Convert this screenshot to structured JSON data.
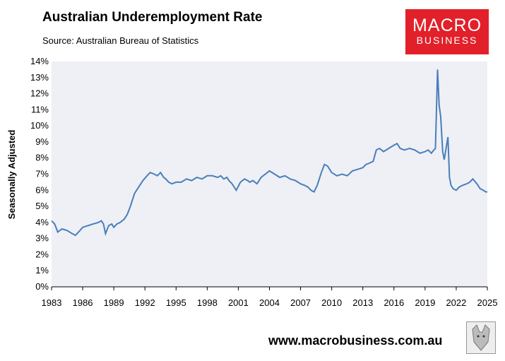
{
  "header": {
    "title": "Australian Underemployment Rate",
    "subtitle": "Source: Australian Bureau of Statistics"
  },
  "logo": {
    "line1": "MACRO",
    "line2": "BUSINESS"
  },
  "footer": {
    "website": "www.macrobusiness.com.au",
    "wolf_icon": "wolf-logo-icon"
  },
  "colors": {
    "line": "#4a7ebb",
    "plot_bg": "#eef0f5",
    "logo_bg": "#e2202a"
  },
  "chart_data": {
    "type": "line",
    "title": "Australian Underemployment Rate",
    "xlabel": "",
    "ylabel": "Seasonally Adjusted",
    "xlim": [
      1983,
      2025
    ],
    "ylim": [
      0,
      14
    ],
    "x_ticks": [
      "1983",
      "1986",
      "1989",
      "1992",
      "1995",
      "1998",
      "2001",
      "2004",
      "2007",
      "2010",
      "2013",
      "2016",
      "2019",
      "2022",
      "2025"
    ],
    "y_ticks": [
      "0%",
      "1%",
      "2%",
      "3%",
      "4%",
      "5%",
      "6%",
      "7%",
      "8%",
      "9%",
      "10%",
      "11%",
      "12%",
      "13%",
      "14%"
    ],
    "grid": false,
    "legend": "none",
    "series": [
      {
        "x": [
          1983.0,
          1983.3,
          1983.6,
          1984.0,
          1984.5,
          1985.0,
          1985.3,
          1985.6,
          1986.0,
          1986.5,
          1987.0,
          1987.5,
          1987.8,
          1988.0,
          1988.2,
          1988.5,
          1988.8,
          1989.0,
          1989.3,
          1989.6,
          1990.0,
          1990.3,
          1990.6,
          1991.0,
          1991.4,
          1991.8,
          1992.2,
          1992.5,
          1992.9,
          1993.2,
          1993.5,
          1993.8,
          1994.0,
          1994.3,
          1994.6,
          1995.0,
          1995.5,
          1996.0,
          1996.5,
          1997.0,
          1997.5,
          1998.0,
          1998.5,
          1999.0,
          1999.3,
          1999.6,
          1999.9,
          2000.1,
          2000.4,
          2000.8,
          2001.2,
          2001.6,
          2001.9,
          2002.1,
          2002.4,
          2002.8,
          2003.2,
          2003.6,
          2004.0,
          2004.5,
          2005.0,
          2005.5,
          2006.0,
          2006.5,
          2007.0,
          2007.4,
          2007.7,
          2008.0,
          2008.3,
          2008.6,
          2009.0,
          2009.3,
          2009.6,
          2010.0,
          2010.5,
          2011.0,
          2011.5,
          2012.0,
          2012.5,
          2013.0,
          2013.3,
          2013.7,
          2014.0,
          2014.3,
          2014.6,
          2015.0,
          2015.5,
          2016.0,
          2016.3,
          2016.6,
          2017.0,
          2017.5,
          2018.0,
          2018.5,
          2019.0,
          2019.3,
          2019.6,
          2019.85,
          2020.0,
          2020.2,
          2020.35,
          2020.5,
          2020.7,
          2020.85,
          2021.0,
          2021.2,
          2021.35,
          2021.5,
          2021.7,
          2022.0,
          2022.3,
          2022.6,
          2023.0,
          2023.3,
          2023.6,
          2024.0,
          2024.3,
          2024.6,
          2024.85,
          2025.0
        ],
        "y": [
          4.1,
          3.9,
          3.4,
          3.6,
          3.5,
          3.3,
          3.2,
          3.4,
          3.7,
          3.8,
          3.9,
          4.0,
          4.1,
          3.9,
          3.3,
          3.8,
          3.9,
          3.7,
          3.9,
          4.0,
          4.2,
          4.5,
          5.0,
          5.8,
          6.2,
          6.6,
          6.9,
          7.1,
          7.0,
          6.9,
          7.1,
          6.8,
          6.7,
          6.5,
          6.4,
          6.5,
          6.5,
          6.7,
          6.6,
          6.8,
          6.7,
          6.9,
          6.9,
          6.8,
          6.9,
          6.7,
          6.8,
          6.6,
          6.4,
          6.0,
          6.5,
          6.7,
          6.6,
          6.5,
          6.6,
          6.4,
          6.8,
          7.0,
          7.2,
          7.0,
          6.8,
          6.9,
          6.7,
          6.6,
          6.4,
          6.3,
          6.2,
          6.0,
          5.9,
          6.3,
          7.1,
          7.6,
          7.5,
          7.1,
          6.9,
          7.0,
          6.9,
          7.2,
          7.3,
          7.4,
          7.6,
          7.7,
          7.8,
          8.5,
          8.6,
          8.4,
          8.6,
          8.8,
          8.9,
          8.6,
          8.5,
          8.6,
          8.5,
          8.3,
          8.4,
          8.5,
          8.3,
          8.5,
          8.6,
          13.5,
          11.3,
          10.6,
          8.4,
          7.9,
          8.5,
          9.3,
          6.8,
          6.3,
          6.1,
          6.0,
          6.2,
          6.3,
          6.4,
          6.5,
          6.7,
          6.4,
          6.1,
          6.0,
          5.9,
          5.9
        ]
      }
    ]
  }
}
